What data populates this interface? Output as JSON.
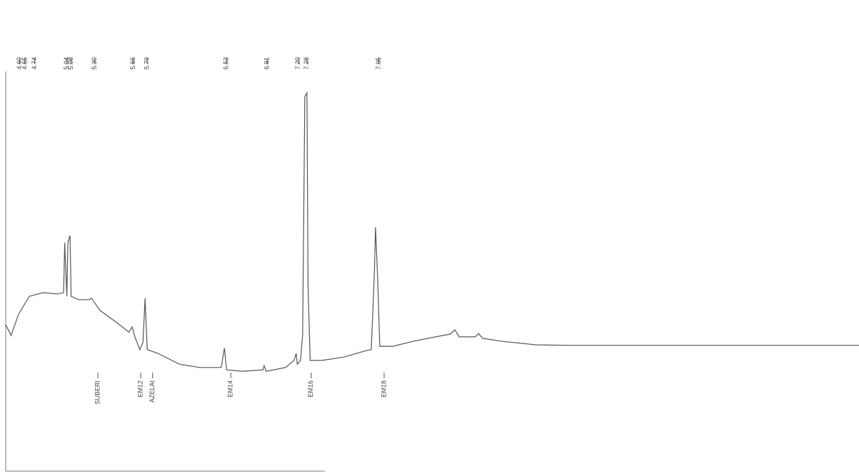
{
  "chart_data": {
    "type": "line",
    "xlim": [
      4.47,
      12.43
    ],
    "ylim": [
      0,
      100
    ],
    "x": [
      4.47,
      4.52,
      4.59,
      4.69,
      4.82,
      4.95,
      5.01,
      5.02,
      5.04,
      5.05,
      5.07,
      5.08,
      5.15,
      5.25,
      5.27,
      5.35,
      5.49,
      5.62,
      5.65,
      5.67,
      5.72,
      5.75,
      5.77,
      5.79,
      5.89,
      6.09,
      6.28,
      6.48,
      6.51,
      6.53,
      6.68,
      6.87,
      6.88,
      6.9,
      7.08,
      7.16,
      7.18,
      7.19,
      7.22,
      7.24,
      7.26,
      7.28,
      7.29,
      7.31,
      7.42,
      7.62,
      7.82,
      7.88,
      7.91,
      7.92,
      7.94,
      7.96,
      8.08,
      8.28,
      8.48,
      8.62,
      8.66,
      8.7,
      8.85,
      8.88,
      8.92,
      9.08,
      9.42,
      9.75,
      10.41,
      11.08,
      12.43
    ],
    "series": [
      {
        "color": "#555555",
        "values": [
          31.1,
          28.8,
          33.3,
          37.1,
          37.9,
          37.6,
          37.9,
          48.5,
          37.1,
          48.5,
          50.0,
          37.1,
          36.4,
          36.4,
          36.7,
          34.1,
          31.8,
          29.5,
          30.6,
          28.8,
          25.8,
          27.3,
          36.7,
          25.8,
          25.0,
          22.7,
          22.0,
          22.0,
          26.1,
          21.5,
          21.2,
          21.5,
          22.4,
          21.2,
          22.0,
          23.5,
          25.0,
          22.7,
          23.5,
          28.8,
          79.5,
          80.3,
          39.4,
          23.5,
          23.5,
          24.2,
          25.5,
          25.8,
          42.4,
          51.8,
          40.9,
          26.5,
          26.5,
          27.6,
          28.5,
          29.1,
          30.0,
          28.5,
          28.5,
          29.2,
          28.2,
          27.6,
          26.8,
          26.7,
          26.7,
          26.7,
          26.7
        ]
      }
    ],
    "peak_labels": [
      {
        "value": 4.6,
        "label": "4.60"
      },
      {
        "value": 4.65,
        "label": "4.65"
      },
      {
        "value": 4.74,
        "label": "4.74"
      },
      {
        "value": 5.04,
        "label": "5.04"
      },
      {
        "value": 5.08,
        "label": "5.08"
      },
      {
        "value": 5.3,
        "label": "5.30"
      },
      {
        "value": 5.66,
        "label": "5.66"
      },
      {
        "value": 5.79,
        "label": "5.79"
      },
      {
        "value": 6.53,
        "label": "6.53"
      },
      {
        "value": 6.91,
        "label": "6.91"
      },
      {
        "value": 7.2,
        "label": "7.20"
      },
      {
        "value": 7.28,
        "label": "7.28"
      },
      {
        "value": 7.95,
        "label": "7.95"
      }
    ],
    "compound_labels": [
      {
        "x": 5.33,
        "label": "SUBERI"
      },
      {
        "x": 5.73,
        "label": "EM12"
      },
      {
        "x": 5.84,
        "label": "AZELAI"
      },
      {
        "x": 6.57,
        "label": "EM14"
      },
      {
        "x": 7.32,
        "label": "EM16"
      },
      {
        "x": 8.0,
        "label": "EM18"
      }
    ]
  }
}
